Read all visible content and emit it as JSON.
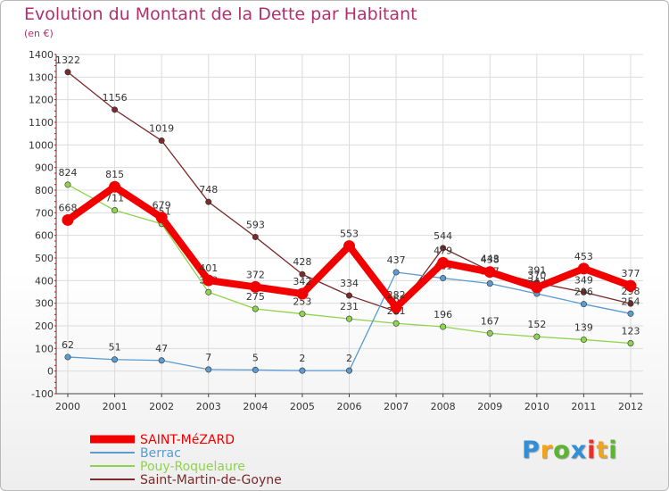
{
  "header": {
    "title": "Evolution du Montant de la Dette par Habitant",
    "subtitle": "(en €)"
  },
  "logo": {
    "text": "Proxiti",
    "colors": [
      "#2f8fd8",
      "#f2a31c",
      "#5cb531",
      "#2f8fd8",
      "#e8302a",
      "#f2a31c",
      "#5cb531"
    ]
  },
  "chart_data": {
    "type": "line",
    "x": [
      "2000",
      "2001",
      "2002",
      "2003",
      "2004",
      "2005",
      "2006",
      "2007",
      "2008",
      "2009",
      "2010",
      "2011",
      "2012"
    ],
    "ylim": [
      -100,
      1400
    ],
    "yticks": [
      -100,
      0,
      100,
      200,
      300,
      400,
      500,
      600,
      700,
      800,
      900,
      1000,
      1100,
      1200,
      1300,
      1400
    ],
    "grid": true,
    "legend": "bottom-left",
    "series": [
      {
        "name": "Saint-Martin-de-Goyne",
        "color": "#7a2a2a",
        "values": [
          1322,
          1156,
          1019,
          748,
          593,
          428,
          334,
          263,
          544,
          443,
          391,
          349,
          298
        ],
        "labels": [
          "1322",
          "1156",
          "1019",
          "748",
          "593",
          "428",
          "334",
          "263",
          "544",
          "443",
          "391",
          "349",
          "298"
        ]
      },
      {
        "name": "Pouy-Roquelaure",
        "color": "#8ed34c",
        "values": [
          824,
          711,
          651,
          349,
          275,
          253,
          231,
          211,
          196,
          167,
          152,
          139,
          123
        ],
        "labels": [
          "824",
          "711",
          "651",
          "349",
          "275",
          "253",
          "231",
          "211",
          "196",
          "167",
          "152",
          "139",
          "123"
        ]
      },
      {
        "name": "Berrac",
        "color": "#5b9bd0",
        "values": [
          62,
          51,
          47,
          7,
          5,
          2,
          2,
          437,
          411,
          387,
          342,
          296,
          254
        ],
        "labels": [
          "62",
          "51",
          "47",
          "7",
          "5",
          "2",
          "2",
          "437",
          "411",
          "387",
          "342",
          "296",
          "254"
        ]
      },
      {
        "name": "SAINT-MéZARD",
        "color": "#f20000",
        "values": [
          668,
          815,
          679,
          401,
          372,
          342,
          553,
          282,
          479,
          438,
          370,
          453,
          377
        ],
        "labels": [
          "668",
          "815",
          "679",
          "401",
          "372",
          "342",
          "553",
          "282",
          "479",
          "438",
          "370",
          "453",
          "377"
        ]
      }
    ]
  },
  "legend": {
    "items": [
      {
        "label": "SAINT-MéZARD",
        "color": "#f20000"
      },
      {
        "label": "Berrac",
        "color": "#5b9bd0"
      },
      {
        "label": "Pouy-Roquelaure",
        "color": "#8ed34c"
      },
      {
        "label": "Saint-Martin-de-Goyne",
        "color": "#7a2a2a"
      }
    ]
  }
}
